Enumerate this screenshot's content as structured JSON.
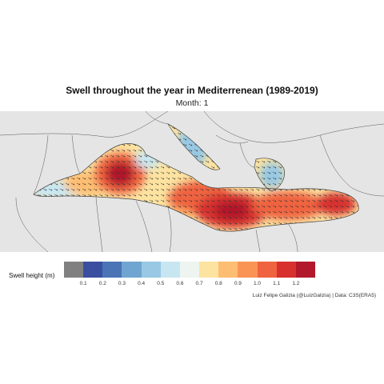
{
  "title": "Swell throughout the year in Mediterrenean (1989-2019)",
  "subtitle": "Month: 1",
  "legend": {
    "label": "Swell height (m)",
    "colors": [
      "#808080",
      "#3b4fa0",
      "#4a74b5",
      "#6fa5d0",
      "#98c8e3",
      "#c8e6f1",
      "#eef5f0",
      "#fde3a0",
      "#fdbd72",
      "#fa9454",
      "#ef6340",
      "#d7302d",
      "#b2182b"
    ],
    "ticks": [
      "0.1",
      "0.2",
      "0.3",
      "0.4",
      "0.5",
      "0.6",
      "0.7",
      "0.8",
      "0.9",
      "1.0",
      "1.1",
      "1.2"
    ]
  },
  "credit": "Luiz Felipe Galizia (@LuizGalizia) | Data: C3S(ERA5)"
}
